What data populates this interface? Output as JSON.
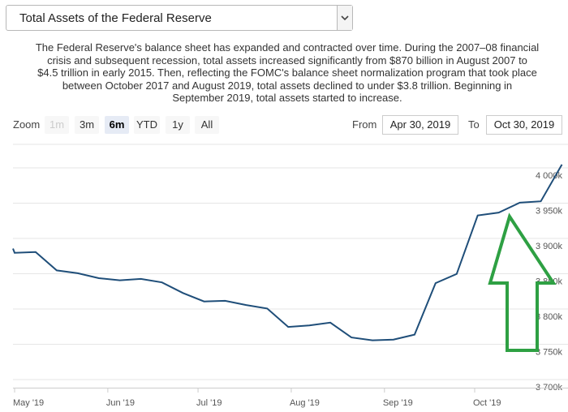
{
  "selector": {
    "value": "Total Assets of the Federal Reserve"
  },
  "description": [
    "The Federal Reserve's balance sheet has expanded and contracted over time. During the 2007–08 financial",
    "crisis and subsequent recession, total assets increased significantly from $870 billion in August 2007 to",
    "$4.5 trillion in early 2015. Then, reflecting the FOMC's balance sheet normalization program that took place",
    "between October 2017 and August 2019, total assets declined to under $3.8 trillion. Beginning in",
    "September 2019, total assets started to increase."
  ],
  "zoom": {
    "label": "Zoom",
    "buttons": [
      "1m",
      "3m",
      "6m",
      "YTD",
      "1y",
      "All"
    ],
    "disabled": "1m",
    "active": "6m"
  },
  "range": {
    "from_label": "From",
    "from_value": "Apr 30, 2019",
    "to_label": "To",
    "to_value": "Oct 30, 2019"
  },
  "colors": {
    "line": "#1f4e79",
    "arrow": "#2ea043",
    "grid": "#e6e6e6",
    "active_button": "#e6ebf5"
  },
  "annotation": {
    "type": "up-arrow",
    "color": "#2ea043"
  },
  "chart_data": {
    "type": "line",
    "title": "",
    "xlabel": "",
    "ylabel": "",
    "grid": true,
    "ylim": [
      3700,
      4020
    ],
    "yticks": [
      3700,
      3750,
      3800,
      3850,
      3900,
      3950,
      4000
    ],
    "ytick_labels": [
      "3 700k",
      "3 750k",
      "3 800k",
      "3 850k",
      "3 900k",
      "3 950k",
      "4 000k"
    ],
    "xticks": [
      "2019-05-01",
      "2019-06-01",
      "2019-07-01",
      "2019-08-01",
      "2019-09-01",
      "2019-10-01"
    ],
    "xtick_labels": [
      "May '19",
      "Jun '19",
      "Jul '19",
      "Aug '19",
      "Sep '19",
      "Oct '19"
    ],
    "x": [
      "2019-04-30",
      "2019-05-01",
      "2019-05-08",
      "2019-05-15",
      "2019-05-22",
      "2019-05-29",
      "2019-06-05",
      "2019-06-12",
      "2019-06-19",
      "2019-06-26",
      "2019-07-03",
      "2019-07-10",
      "2019-07-17",
      "2019-07-24",
      "2019-07-31",
      "2019-08-07",
      "2019-08-14",
      "2019-08-21",
      "2019-08-28",
      "2019-09-04",
      "2019-09-11",
      "2019-09-18",
      "2019-09-25",
      "2019-10-02",
      "2019-10-09",
      "2019-10-16",
      "2019-10-23",
      "2019-10-30"
    ],
    "y": [
      3896,
      3890,
      3891,
      3865,
      3861,
      3854,
      3851,
      3853,
      3848,
      3833,
      3821,
      3822,
      3816,
      3811,
      3785,
      3787,
      3791,
      3770,
      3766,
      3767,
      3774,
      3847,
      3860,
      3943,
      3947,
      3961,
      3963,
      4015
    ]
  }
}
